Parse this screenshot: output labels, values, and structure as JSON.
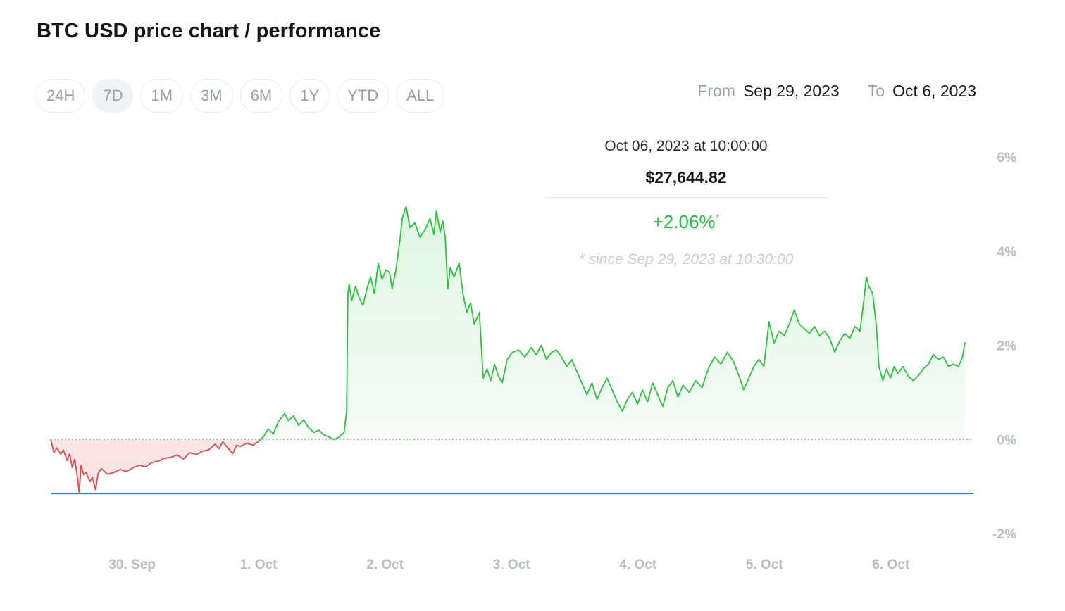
{
  "title": "BTC USD price chart / performance",
  "ranges": [
    {
      "label": "24H",
      "active": false
    },
    {
      "label": "7D",
      "active": true
    },
    {
      "label": "1M",
      "active": false
    },
    {
      "label": "3M",
      "active": false
    },
    {
      "label": "6M",
      "active": false
    },
    {
      "label": "1Y",
      "active": false
    },
    {
      "label": "YTD",
      "active": false
    },
    {
      "label": "ALL",
      "active": false
    }
  ],
  "date_range": {
    "from_label": "From",
    "from_value": "Sep 29, 2023",
    "to_label": "To",
    "to_value": "Oct 6, 2023"
  },
  "tooltip": {
    "date": "Oct 06, 2023 at 10:00:00",
    "price": "$27,644.82",
    "change": "+2.06%",
    "change_mark": "*",
    "since": "* since Sep 29, 2023 at 10:30:00"
  },
  "colors": {
    "positive": "#2cc23e",
    "negative": "#e64b4b",
    "low_line": "#3a7be0",
    "axis_text": "#b8bdc4"
  },
  "chart_data": {
    "type": "area",
    "y_unit": "%",
    "ylim": [
      -2,
      6
    ],
    "y_ticks": [
      {
        "value": 6,
        "label": "6%"
      },
      {
        "value": 4,
        "label": "4%"
      },
      {
        "value": 2,
        "label": "2%"
      },
      {
        "value": 0,
        "label": "0%"
      },
      {
        "value": -2,
        "label": "-2%"
      }
    ],
    "x_ticks": [
      {
        "t": 0.644,
        "label": "30. Sep"
      },
      {
        "t": 1.644,
        "label": "1. Oct"
      },
      {
        "t": 2.644,
        "label": "2. Oct"
      },
      {
        "t": 3.644,
        "label": "3. Oct"
      },
      {
        "t": 4.644,
        "label": "4. Oct"
      },
      {
        "t": 5.644,
        "label": "5. Oct"
      },
      {
        "t": 6.644,
        "label": "6. Oct"
      }
    ],
    "baseline": 0,
    "low_line": -1.15,
    "series": [
      {
        "points": [
          [
            0.0,
            0.0
          ],
          [
            0.025,
            -0.28
          ],
          [
            0.05,
            -0.18
          ],
          [
            0.08,
            -0.32
          ],
          [
            0.1,
            -0.22
          ],
          [
            0.13,
            -0.45
          ],
          [
            0.15,
            -0.3
          ],
          [
            0.17,
            -0.6
          ],
          [
            0.19,
            -0.42
          ],
          [
            0.21,
            -0.78
          ],
          [
            0.225,
            -1.13
          ],
          [
            0.24,
            -0.55
          ],
          [
            0.26,
            -0.75
          ],
          [
            0.28,
            -0.7
          ],
          [
            0.31,
            -0.9
          ],
          [
            0.33,
            -0.8
          ],
          [
            0.355,
            -1.07
          ],
          [
            0.375,
            -0.72
          ],
          [
            0.4,
            -0.62
          ],
          [
            0.45,
            -0.74
          ],
          [
            0.5,
            -0.7
          ],
          [
            0.55,
            -0.64
          ],
          [
            0.6,
            -0.68
          ],
          [
            0.65,
            -0.6
          ],
          [
            0.7,
            -0.55
          ],
          [
            0.75,
            -0.58
          ],
          [
            0.8,
            -0.49
          ],
          [
            0.85,
            -0.46
          ],
          [
            0.9,
            -0.4
          ],
          [
            0.95,
            -0.38
          ],
          [
            1.0,
            -0.33
          ],
          [
            1.05,
            -0.42
          ],
          [
            1.1,
            -0.28
          ],
          [
            1.15,
            -0.32
          ],
          [
            1.2,
            -0.25
          ],
          [
            1.25,
            -0.22
          ],
          [
            1.3,
            -0.1
          ],
          [
            1.33,
            -0.2
          ],
          [
            1.36,
            -0.05
          ],
          [
            1.4,
            -0.18
          ],
          [
            1.44,
            -0.3
          ],
          [
            1.47,
            -0.12
          ],
          [
            1.5,
            -0.15
          ],
          [
            1.55,
            -0.08
          ],
          [
            1.6,
            -0.12
          ],
          [
            1.64,
            -0.05
          ],
          [
            1.68,
            0.05
          ],
          [
            1.72,
            0.22
          ],
          [
            1.76,
            0.12
          ],
          [
            1.8,
            0.38
          ],
          [
            1.85,
            0.55
          ],
          [
            1.88,
            0.4
          ],
          [
            1.92,
            0.5
          ],
          [
            1.96,
            0.3
          ],
          [
            2.0,
            0.42
          ],
          [
            2.04,
            0.25
          ],
          [
            2.08,
            0.15
          ],
          [
            2.12,
            0.2
          ],
          [
            2.16,
            0.1
          ],
          [
            2.2,
            0.05
          ],
          [
            2.24,
            0.0
          ],
          [
            2.28,
            0.05
          ],
          [
            2.32,
            0.15
          ],
          [
            2.34,
            0.6
          ],
          [
            2.35,
            3.1
          ],
          [
            2.36,
            3.3
          ],
          [
            2.38,
            2.95
          ],
          [
            2.41,
            3.25
          ],
          [
            2.44,
            3.0
          ],
          [
            2.47,
            2.85
          ],
          [
            2.5,
            3.2
          ],
          [
            2.53,
            3.45
          ],
          [
            2.56,
            3.1
          ],
          [
            2.59,
            3.75
          ],
          [
            2.62,
            3.4
          ],
          [
            2.65,
            3.6
          ],
          [
            2.68,
            3.55
          ],
          [
            2.7,
            3.2
          ],
          [
            2.73,
            3.6
          ],
          [
            2.76,
            4.2
          ],
          [
            2.78,
            4.7
          ],
          [
            2.81,
            4.95
          ],
          [
            2.84,
            4.5
          ],
          [
            2.88,
            4.6
          ],
          [
            2.92,
            4.3
          ],
          [
            2.96,
            4.45
          ],
          [
            3.0,
            4.7
          ],
          [
            3.03,
            4.35
          ],
          [
            3.05,
            4.85
          ],
          [
            3.08,
            4.4
          ],
          [
            3.1,
            4.65
          ],
          [
            3.12,
            4.3
          ],
          [
            3.14,
            3.2
          ],
          [
            3.16,
            3.65
          ],
          [
            3.19,
            3.45
          ],
          [
            3.23,
            3.75
          ],
          [
            3.26,
            3.1
          ],
          [
            3.29,
            2.7
          ],
          [
            3.32,
            2.9
          ],
          [
            3.35,
            2.45
          ],
          [
            3.39,
            2.7
          ],
          [
            3.42,
            1.3
          ],
          [
            3.45,
            1.5
          ],
          [
            3.48,
            1.25
          ],
          [
            3.51,
            1.6
          ],
          [
            3.54,
            1.35
          ],
          [
            3.57,
            1.2
          ],
          [
            3.61,
            1.7
          ],
          [
            3.65,
            1.85
          ],
          [
            3.7,
            1.9
          ],
          [
            3.75,
            1.75
          ],
          [
            3.8,
            1.95
          ],
          [
            3.84,
            1.8
          ],
          [
            3.88,
            2.0
          ],
          [
            3.92,
            1.7
          ],
          [
            3.96,
            1.85
          ],
          [
            4.0,
            1.9
          ],
          [
            4.04,
            1.75
          ],
          [
            4.08,
            1.55
          ],
          [
            4.12,
            1.7
          ],
          [
            4.16,
            1.45
          ],
          [
            4.2,
            1.2
          ],
          [
            4.24,
            0.95
          ],
          [
            4.28,
            1.2
          ],
          [
            4.32,
            0.85
          ],
          [
            4.36,
            1.1
          ],
          [
            4.4,
            1.3
          ],
          [
            4.44,
            1.05
          ],
          [
            4.48,
            0.8
          ],
          [
            4.52,
            0.6
          ],
          [
            4.56,
            0.85
          ],
          [
            4.6,
            1.0
          ],
          [
            4.64,
            0.75
          ],
          [
            4.68,
            1.05
          ],
          [
            4.72,
            0.8
          ],
          [
            4.76,
            1.2
          ],
          [
            4.8,
            0.95
          ],
          [
            4.84,
            0.7
          ],
          [
            4.88,
            1.1
          ],
          [
            4.92,
            1.25
          ],
          [
            4.96,
            0.9
          ],
          [
            5.0,
            1.15
          ],
          [
            5.05,
            1.0
          ],
          [
            5.1,
            1.25
          ],
          [
            5.15,
            1.1
          ],
          [
            5.2,
            1.5
          ],
          [
            5.25,
            1.75
          ],
          [
            5.3,
            1.6
          ],
          [
            5.35,
            1.85
          ],
          [
            5.4,
            1.65
          ],
          [
            5.45,
            1.3
          ],
          [
            5.48,
            1.05
          ],
          [
            5.52,
            1.3
          ],
          [
            5.56,
            1.55
          ],
          [
            5.6,
            1.7
          ],
          [
            5.64,
            1.55
          ],
          [
            5.68,
            2.5
          ],
          [
            5.72,
            2.05
          ],
          [
            5.76,
            2.3
          ],
          [
            5.8,
            2.2
          ],
          [
            5.84,
            2.45
          ],
          [
            5.88,
            2.75
          ],
          [
            5.92,
            2.45
          ],
          [
            5.96,
            2.35
          ],
          [
            6.0,
            2.25
          ],
          [
            6.04,
            2.4
          ],
          [
            6.08,
            2.2
          ],
          [
            6.12,
            2.3
          ],
          [
            6.16,
            2.15
          ],
          [
            6.2,
            1.85
          ],
          [
            6.24,
            2.1
          ],
          [
            6.28,
            2.25
          ],
          [
            6.32,
            2.15
          ],
          [
            6.36,
            2.4
          ],
          [
            6.4,
            2.3
          ],
          [
            6.43,
            2.95
          ],
          [
            6.45,
            3.45
          ],
          [
            6.47,
            3.25
          ],
          [
            6.5,
            3.1
          ],
          [
            6.53,
            2.4
          ],
          [
            6.55,
            1.55
          ],
          [
            6.58,
            1.25
          ],
          [
            6.61,
            1.5
          ],
          [
            6.64,
            1.3
          ],
          [
            6.67,
            1.55
          ],
          [
            6.7,
            1.4
          ],
          [
            6.74,
            1.55
          ],
          [
            6.78,
            1.35
          ],
          [
            6.82,
            1.25
          ],
          [
            6.86,
            1.35
          ],
          [
            6.9,
            1.5
          ],
          [
            6.94,
            1.6
          ],
          [
            6.98,
            1.8
          ],
          [
            7.02,
            1.7
          ],
          [
            7.06,
            1.75
          ],
          [
            7.1,
            1.55
          ],
          [
            7.14,
            1.6
          ],
          [
            7.18,
            1.55
          ],
          [
            7.21,
            1.75
          ],
          [
            7.23,
            2.06
          ]
        ]
      }
    ]
  }
}
